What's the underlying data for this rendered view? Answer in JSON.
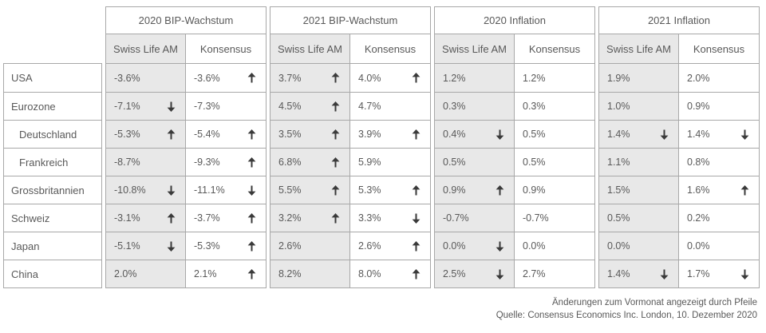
{
  "page": {
    "footnotes": {
      "line1": "Änderungen zum Vormonat angezeigt durch Pfeile",
      "line2": "Quelle: Consensus Economics Inc. London, 10. Dezember 2020"
    }
  },
  "colors": {
    "cell_gray": "#e8e8e8",
    "border_gray": "#a8a8a8",
    "text_gray": "#595959",
    "arrow_dark": "#3a3a3a"
  },
  "icons": {
    "up_arrow": "↑",
    "down_arrow": "↓"
  },
  "table": {
    "column_groups": [
      {
        "title": "2020 BIP-Wachstum"
      },
      {
        "title": "2021 BIP-Wachstum"
      },
      {
        "title": "2020 Inflation"
      },
      {
        "title": "2021 Inflation"
      }
    ],
    "subheaders": [
      "Swiss Life AM",
      "Konsensus"
    ],
    "rows": [
      {
        "country": "USA",
        "indent": false,
        "cells": [
          {
            "value": "-3.6%",
            "arrow": ""
          },
          {
            "value": "-3.6%",
            "arrow": "up"
          },
          {
            "value": "3.7%",
            "arrow": "up"
          },
          {
            "value": "4.0%",
            "arrow": "up"
          },
          {
            "value": "1.2%",
            "arrow": ""
          },
          {
            "value": "1.2%",
            "arrow": ""
          },
          {
            "value": "1.9%",
            "arrow": ""
          },
          {
            "value": "2.0%",
            "arrow": ""
          }
        ]
      },
      {
        "country": "Eurozone",
        "indent": false,
        "cells": [
          {
            "value": "-7.1%",
            "arrow": "down"
          },
          {
            "value": "-7.3%",
            "arrow": ""
          },
          {
            "value": "4.5%",
            "arrow": "up"
          },
          {
            "value": "4.7%",
            "arrow": ""
          },
          {
            "value": "0.3%",
            "arrow": ""
          },
          {
            "value": "0.3%",
            "arrow": ""
          },
          {
            "value": "1.0%",
            "arrow": ""
          },
          {
            "value": "0.9%",
            "arrow": ""
          }
        ]
      },
      {
        "country": "Deutschland",
        "indent": true,
        "cells": [
          {
            "value": "-5.3%",
            "arrow": "up"
          },
          {
            "value": "-5.4%",
            "arrow": "up"
          },
          {
            "value": "3.5%",
            "arrow": "up"
          },
          {
            "value": "3.9%",
            "arrow": "up"
          },
          {
            "value": "0.4%",
            "arrow": "down"
          },
          {
            "value": "0.5%",
            "arrow": ""
          },
          {
            "value": "1.4%",
            "arrow": "down"
          },
          {
            "value": "1.4%",
            "arrow": "down"
          }
        ]
      },
      {
        "country": "Frankreich",
        "indent": true,
        "cells": [
          {
            "value": "-8.7%",
            "arrow": ""
          },
          {
            "value": "-9.3%",
            "arrow": "up"
          },
          {
            "value": "6.8%",
            "arrow": "up"
          },
          {
            "value": "5.9%",
            "arrow": ""
          },
          {
            "value": "0.5%",
            "arrow": ""
          },
          {
            "value": "0.5%",
            "arrow": ""
          },
          {
            "value": "1.1%",
            "arrow": ""
          },
          {
            "value": "0.8%",
            "arrow": ""
          }
        ]
      },
      {
        "country": "Grossbritannien",
        "indent": false,
        "cells": [
          {
            "value": "-10.8%",
            "arrow": "down"
          },
          {
            "value": "-11.1%",
            "arrow": "down"
          },
          {
            "value": "5.5%",
            "arrow": "up"
          },
          {
            "value": "5.3%",
            "arrow": "up"
          },
          {
            "value": "0.9%",
            "arrow": "up"
          },
          {
            "value": "0.9%",
            "arrow": ""
          },
          {
            "value": "1.5%",
            "arrow": ""
          },
          {
            "value": "1.6%",
            "arrow": "up"
          }
        ]
      },
      {
        "country": "Schweiz",
        "indent": false,
        "cells": [
          {
            "value": "-3.1%",
            "arrow": "up"
          },
          {
            "value": "-3.7%",
            "arrow": "up"
          },
          {
            "value": "3.2%",
            "arrow": "up"
          },
          {
            "value": "3.3%",
            "arrow": "down"
          },
          {
            "value": "-0.7%",
            "arrow": ""
          },
          {
            "value": "-0.7%",
            "arrow": ""
          },
          {
            "value": "0.5%",
            "arrow": ""
          },
          {
            "value": "0.2%",
            "arrow": ""
          }
        ]
      },
      {
        "country": "Japan",
        "indent": false,
        "cells": [
          {
            "value": "-5.1%",
            "arrow": "down"
          },
          {
            "value": "-5.3%",
            "arrow": "up"
          },
          {
            "value": "2.6%",
            "arrow": ""
          },
          {
            "value": "2.6%",
            "arrow": "up"
          },
          {
            "value": "0.0%",
            "arrow": "down"
          },
          {
            "value": "0.0%",
            "arrow": ""
          },
          {
            "value": "0.0%",
            "arrow": ""
          },
          {
            "value": "0.0%",
            "arrow": ""
          }
        ]
      },
      {
        "country": "China",
        "indent": false,
        "cells": [
          {
            "value": "2.0%",
            "arrow": ""
          },
          {
            "value": "2.1%",
            "arrow": "up"
          },
          {
            "value": "8.2%",
            "arrow": ""
          },
          {
            "value": "8.0%",
            "arrow": "up"
          },
          {
            "value": "2.5%",
            "arrow": "down"
          },
          {
            "value": "2.7%",
            "arrow": ""
          },
          {
            "value": "1.4%",
            "arrow": "down"
          },
          {
            "value": "1.7%",
            "arrow": "down"
          }
        ]
      }
    ]
  }
}
